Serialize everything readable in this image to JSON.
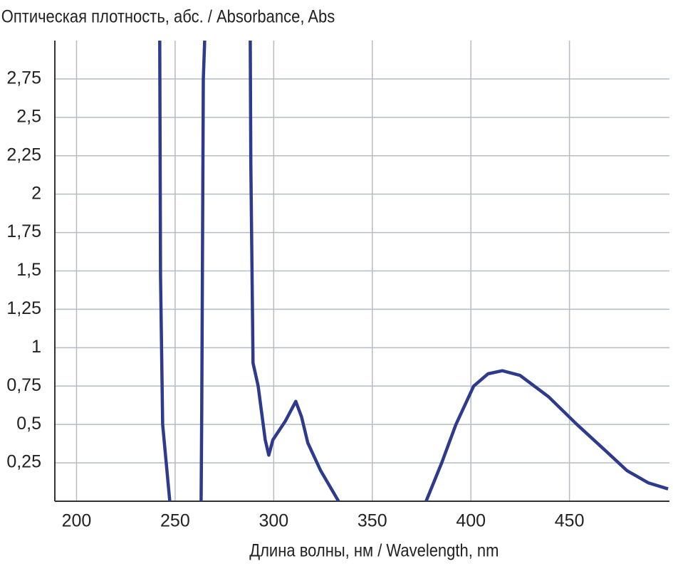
{
  "chart_data": {
    "type": "line",
    "ylabel": "Оптическая плотность, абс. / Absorbance, Abs",
    "xlabel": "Длина волны, нм / Wavelength, nm",
    "x": [
      242.2,
      242.6,
      243.7,
      245.5,
      247.3,
      null,
      263.2,
      263.5,
      264.3,
      265,
      null,
      288.1,
      288.4,
      289.5,
      292.1,
      295.7,
      297.5,
      299.6,
      305.8,
      311.2,
      314.1,
      317.3,
      323.8,
      332.9,
      null,
      377.3,
      385.2,
      392.4,
      401.4,
      408.7,
      415.9,
      424.9,
      439.4,
      453.8,
      468.2,
      479.1,
      489.9,
      500
    ],
    "values": [
      3,
      1.47,
      0.5,
      0.25,
      0,
      null,
      0,
      0.6,
      2.75,
      3,
      null,
      3,
      2.2,
      0.9,
      0.75,
      0.4,
      0.3,
      0.4,
      0.52,
      0.65,
      0.55,
      0.38,
      0.2,
      0,
      null,
      0,
      0.25,
      0.5,
      0.75,
      0.83,
      0.85,
      0.82,
      0.68,
      0.5,
      0.33,
      0.2,
      0.12,
      0.08
    ],
    "color": "#2e3a8c",
    "xlim": [
      189,
      500.7
    ],
    "ylim": [
      0,
      3
    ],
    "xticks": [
      200,
      250,
      300,
      350,
      400,
      450
    ],
    "yticks": [
      {
        "value": 0.25,
        "label": "0,25"
      },
      {
        "value": 0.5,
        "label": "0,5"
      },
      {
        "value": 0.75,
        "label": "0,75"
      },
      1,
      {
        "value": 1.25,
        "label": "1,25"
      },
      {
        "value": 1.5,
        "label": "1,5"
      },
      {
        "value": 1.75,
        "label": "1,75"
      },
      2,
      {
        "value": 2.25,
        "label": "2,25"
      },
      {
        "value": 2.5,
        "label": "2,5"
      },
      {
        "value": 2.75,
        "label": "2,75"
      }
    ],
    "grid": true
  }
}
